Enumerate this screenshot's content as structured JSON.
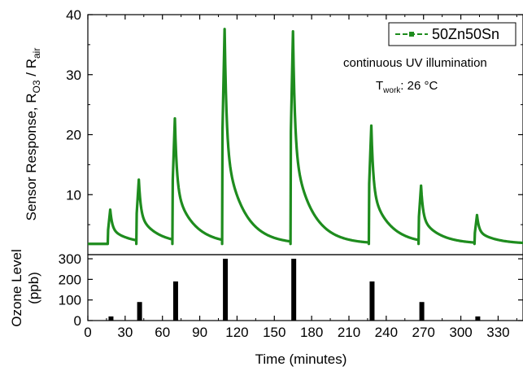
{
  "chart_data": [
    {
      "type": "line",
      "panel": "top",
      "ylabel": "Sensor Response, R",
      "ylabel_sub1": "O3",
      "ylabel_mid": " / R",
      "ylabel_sub2": "air",
      "ylim": [
        0,
        40
      ],
      "yticks": [
        10,
        20,
        30,
        40
      ],
      "xlim": [
        0,
        350
      ],
      "baseline": 1.8,
      "series": [
        {
          "name": "50Zn50Sn",
          "color": "#1e8c1e",
          "pulses": [
            {
              "t_on": 16,
              "t_off": 18,
              "peak": 7.5
            },
            {
              "t_on": 39,
              "t_off": 41,
              "peak": 12.5
            },
            {
              "t_on": 68,
              "t_off": 70,
              "peak": 22.7
            },
            {
              "t_on": 108,
              "t_off": 110,
              "peak": 37.6
            },
            {
              "t_on": 163,
              "t_off": 165,
              "peak": 37.2
            },
            {
              "t_on": 226,
              "t_off": 228,
              "peak": 21.5
            },
            {
              "t_on": 266,
              "t_off": 268,
              "peak": 11.5
            },
            {
              "t_on": 311,
              "t_off": 313,
              "peak": 6.6
            }
          ]
        }
      ],
      "legend_position": "top-right",
      "annotations": {
        "line1": "continuous UV illumination",
        "t_main": "T",
        "t_sub": "work",
        "t_rest": ": 26 °C"
      }
    },
    {
      "type": "bar",
      "panel": "bottom",
      "ylabel_line1": "Ozone Level",
      "ylabel_line2": "(ppb)",
      "ylim": [
        0,
        320
      ],
      "yticks": [
        0,
        100,
        200,
        300
      ],
      "xlabel": "Time (minutes)",
      "xlim": [
        0,
        350
      ],
      "xticks": [
        0,
        30,
        60,
        90,
        120,
        150,
        180,
        210,
        240,
        270,
        300,
        330
      ],
      "x": [
        16,
        39,
        68,
        108,
        163,
        226,
        266,
        311
      ],
      "values": [
        20,
        90,
        190,
        300,
        300,
        190,
        90,
        20
      ]
    }
  ]
}
